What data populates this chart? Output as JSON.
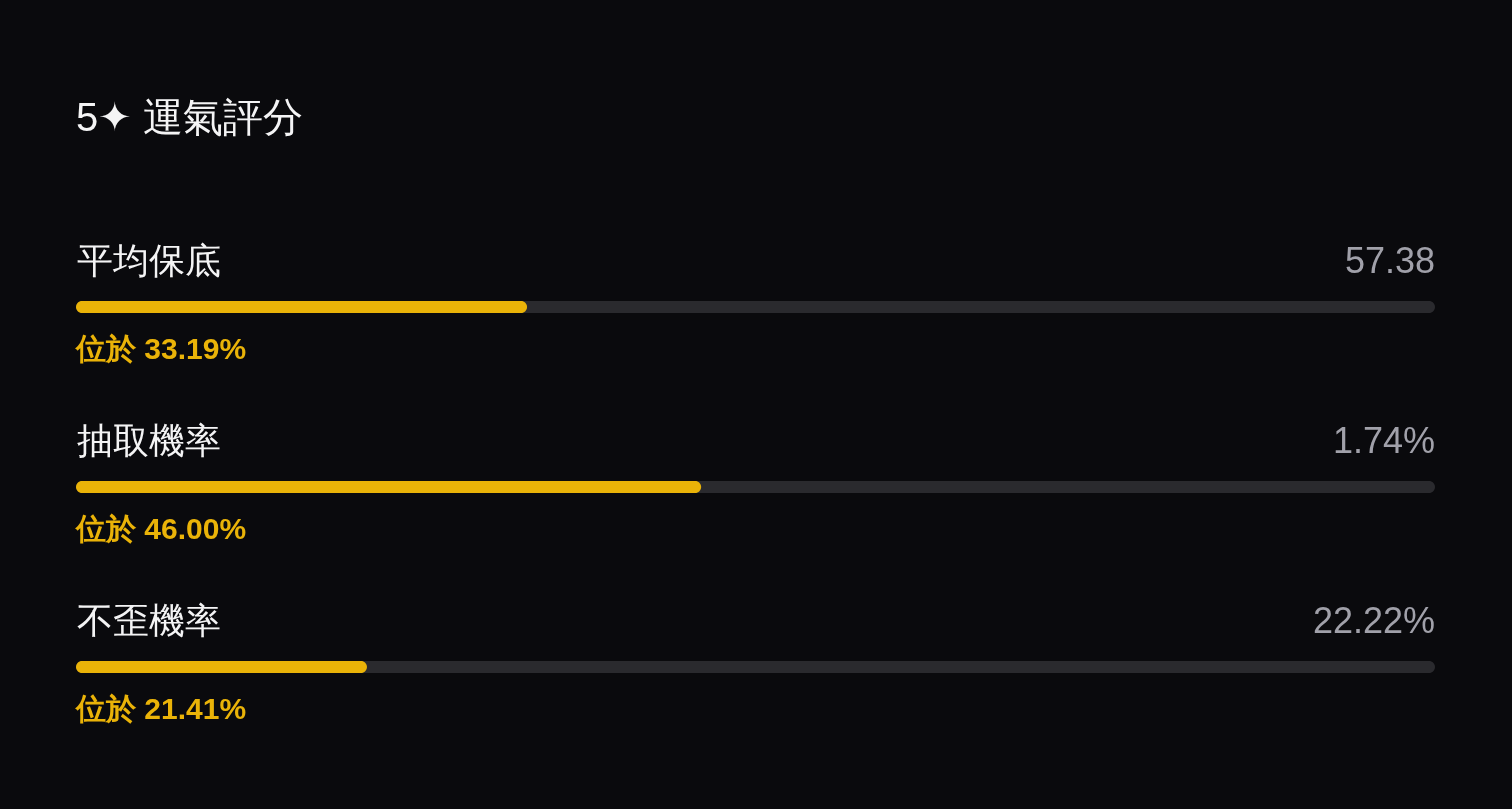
{
  "chart_data": {
    "type": "bar",
    "orientation": "horizontal",
    "title": "5✦ 運氣評分",
    "categories": [
      "平均保底",
      "抽取機率",
      "不歪機率"
    ],
    "series": [
      {
        "color": "#eab308",
        "values": [
          33.19,
          46.0,
          21.41
        ],
        "value_labels": [
          "位於 33.19%",
          "位於 46.00%",
          "位於 21.41%"
        ]
      }
    ],
    "xlim": [
      0,
      100
    ],
    "tick_labels": "y",
    "annotations": [
      "57.38",
      "1.74%",
      "22.22%"
    ]
  }
}
